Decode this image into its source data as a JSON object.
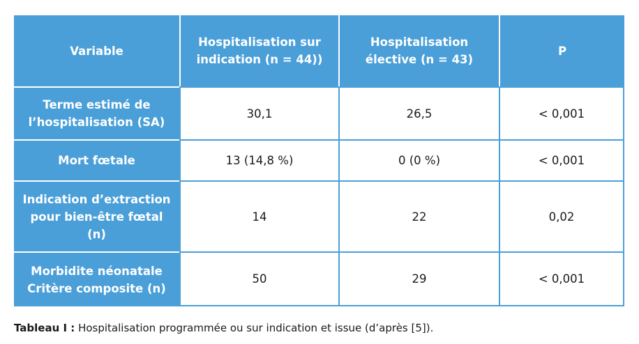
{
  "table": {
    "headers": [
      "Variable",
      "Hospitalisation sur\nindication (n = 44))",
      "Hospitalisation\nélective (n = 43)",
      "P"
    ],
    "rows": [
      {
        "variable": "Terme estimé de\nl’hospitalisation (SA)",
        "indication": "30,1",
        "elective": "26,5",
        "p": "< 0,001"
      },
      {
        "variable": "Mort fœtale",
        "indication": "13 (14,8 %)",
        "elective": "0 (0 %)",
        "p": "< 0,001"
      },
      {
        "variable": "Indication d’extraction\npour bien-être fœtal\n(n)",
        "indication": "14",
        "elective": "22",
        "p": "0,02"
      },
      {
        "variable": "Morbidite néonatale\nCritère composite (n)",
        "indication": "50",
        "elective": "29",
        "p": "< 0,001"
      }
    ]
  },
  "caption": {
    "label": "Tableau I :",
    "text": " Hospitalisation programmée ou sur indication et issue (d’après [5])."
  },
  "colors": {
    "header_bg": "#4a9fd8",
    "header_text": "#ffffff",
    "cell_bg": "#ffffff"
  }
}
